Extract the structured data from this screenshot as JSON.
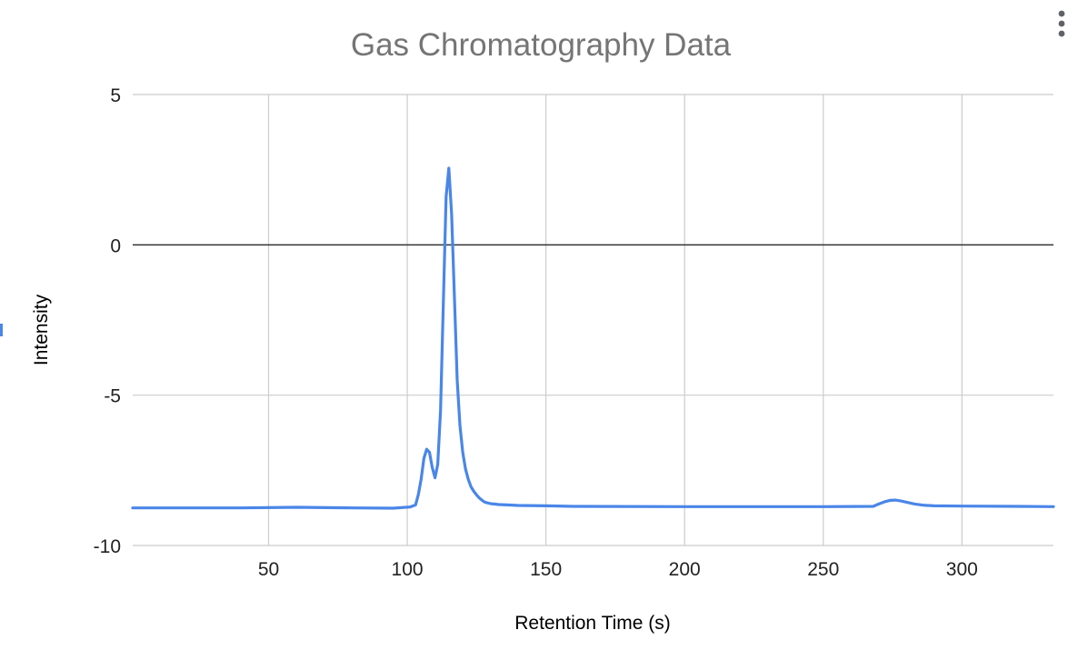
{
  "chart_data": {
    "type": "line",
    "title": "Gas Chromatography Data",
    "xlabel": "Retention Time (s)",
    "ylabel": "Intensity",
    "xlim": [
      1,
      333
    ],
    "ylim": [
      -10,
      5
    ],
    "xticks": [
      50,
      100,
      150,
      200,
      250,
      300
    ],
    "yticks": [
      5,
      0,
      -5,
      -10
    ],
    "grid": true,
    "legend": "none",
    "series": [
      {
        "color": "#4a86e8",
        "x": [
          1,
          20,
          40,
          60,
          80,
          95,
          101,
          103,
          104,
          105,
          106,
          107,
          108,
          109,
          110,
          111,
          112,
          113,
          114,
          115,
          116,
          117,
          118,
          119,
          120,
          121,
          122,
          123,
          124,
          125,
          126,
          127,
          128,
          130,
          133,
          136,
          140,
          150,
          160,
          200,
          250,
          268,
          270,
          272,
          274,
          276,
          278,
          280,
          283,
          286,
          290,
          300,
          320,
          333
        ],
        "y": [
          -8.75,
          -8.75,
          -8.75,
          -8.73,
          -8.75,
          -8.76,
          -8.72,
          -8.65,
          -8.3,
          -7.8,
          -7.1,
          -6.8,
          -6.9,
          -7.4,
          -7.75,
          -7.3,
          -5.5,
          -2.0,
          1.6,
          2.55,
          1.0,
          -1.7,
          -4.5,
          -6.0,
          -6.9,
          -7.45,
          -7.8,
          -8.05,
          -8.2,
          -8.32,
          -8.42,
          -8.5,
          -8.56,
          -8.61,
          -8.64,
          -8.65,
          -8.67,
          -8.68,
          -8.7,
          -8.71,
          -8.71,
          -8.7,
          -8.62,
          -8.55,
          -8.5,
          -8.49,
          -8.52,
          -8.56,
          -8.62,
          -8.66,
          -8.68,
          -8.69,
          -8.7,
          -8.71
        ]
      }
    ]
  }
}
